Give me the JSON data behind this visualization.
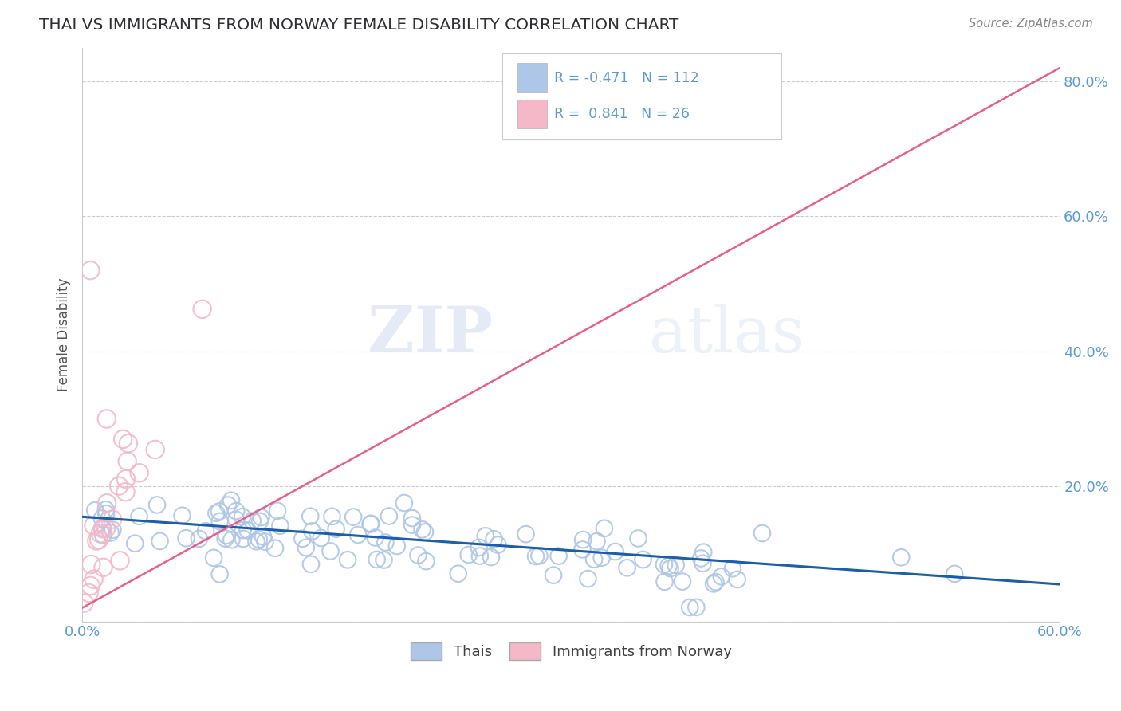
{
  "title": "THAI VS IMMIGRANTS FROM NORWAY FEMALE DISABILITY CORRELATION CHART",
  "source": "Source: ZipAtlas.com",
  "ylabel_label": "Female Disability",
  "x_min": 0.0,
  "x_max": 0.6,
  "y_min": 0.0,
  "y_max": 0.85,
  "x_ticks": [
    0.0,
    0.1,
    0.2,
    0.3,
    0.4,
    0.5,
    0.6
  ],
  "x_tick_labels": [
    "0.0%",
    "",
    "",
    "",
    "",
    "",
    "60.0%"
  ],
  "y_ticks": [
    0.0,
    0.2,
    0.4,
    0.6,
    0.8
  ],
  "y_tick_labels": [
    "",
    "20.0%",
    "40.0%",
    "60.0%",
    "80.0%"
  ],
  "series1_label": "Thais",
  "series1_color": "#aec6e8",
  "series1_line_color": "#1a5fa8",
  "series1_R": "-0.471",
  "series1_N": "112",
  "series2_label": "Immigrants from Norway",
  "series2_color": "#f4b8c8",
  "series2_line_color": "#e8608a",
  "series2_R": "0.841",
  "series2_N": "26",
  "watermark_ZIP": "ZIP",
  "watermark_atlas": "atlas",
  "background_color": "#ffffff",
  "grid_color": "#cccccc",
  "tick_label_color": "#5b9bd5",
  "title_color": "#2f3033",
  "legend_text_color": "#5b9bd5"
}
